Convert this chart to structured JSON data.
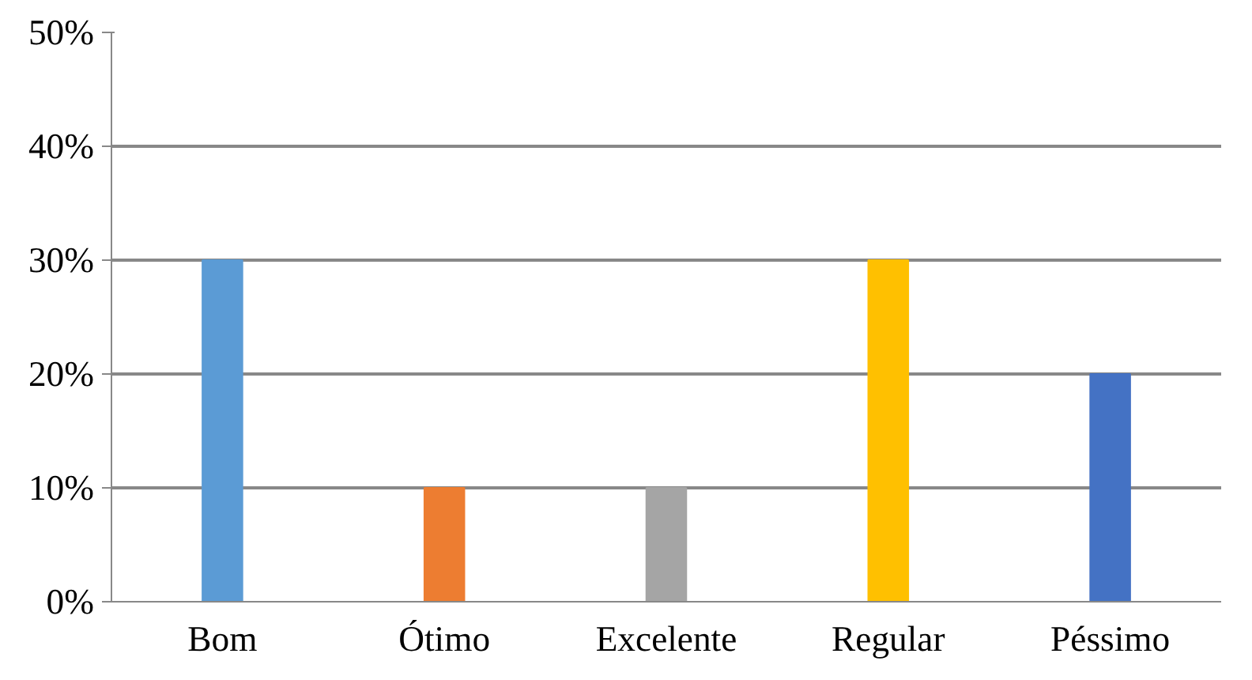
{
  "chart_data": {
    "type": "bar",
    "categories": [
      "Bom",
      "Ótimo",
      "Excelente",
      "Regular",
      "Péssimo"
    ],
    "values": [
      30,
      10,
      10,
      30,
      20
    ],
    "colors": [
      "#5b9bd5",
      "#ed7d31",
      "#a5a5a5",
      "#ffc000",
      "#4472c4"
    ],
    "ylim": [
      0,
      50
    ],
    "yticks": [
      {
        "value": 0,
        "label": "0%"
      },
      {
        "value": 10,
        "label": "10%"
      },
      {
        "value": 20,
        "label": "20%"
      },
      {
        "value": 30,
        "label": "30%"
      },
      {
        "value": 40,
        "label": "40%"
      },
      {
        "value": 50,
        "label": "50%"
      }
    ],
    "grid": "y"
  }
}
